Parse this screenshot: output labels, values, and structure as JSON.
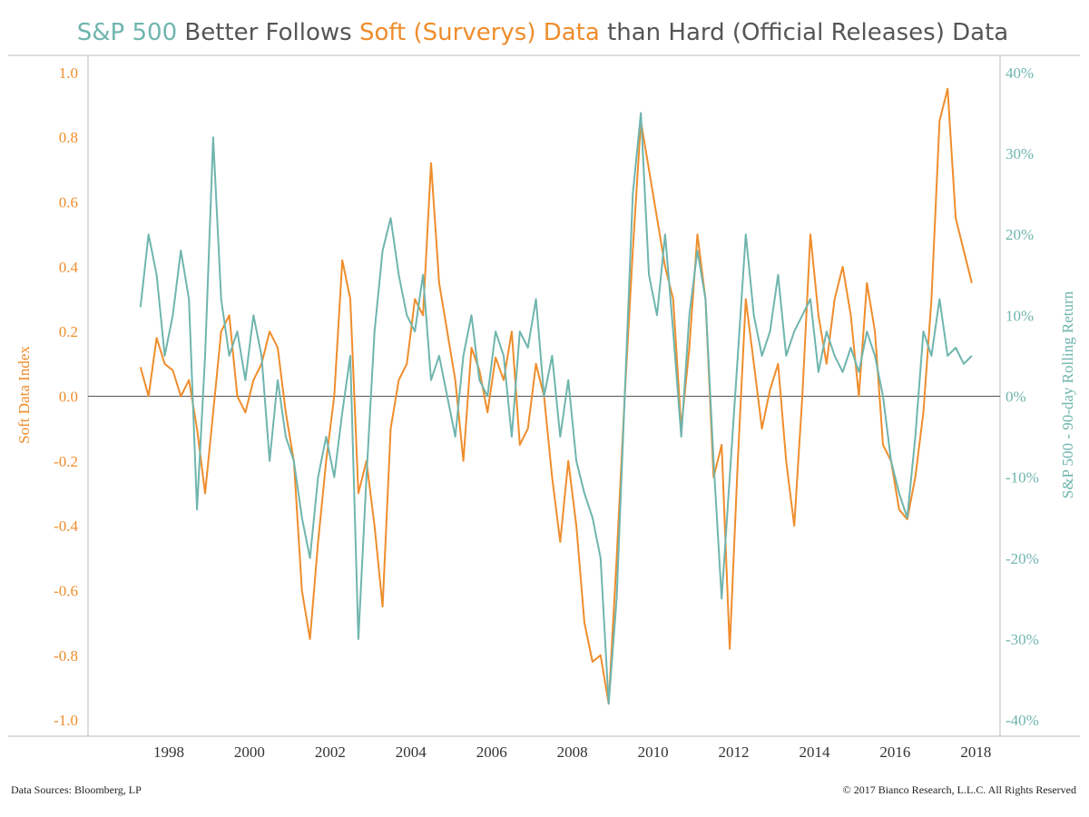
{
  "title": {
    "part1": "S&P 500",
    "part2": " Better Follows ",
    "part3": "Soft (Surverys) Data",
    "part4": " than Hard (Official Releases) Data"
  },
  "colors": {
    "soft": "#ef8d2c",
    "sp500": "#6fb5ae",
    "title_dark": "#555555",
    "axis": "#bbbbbb",
    "zero_line": "#555555"
  },
  "footer": {
    "sources": "Data Sources: Bloomberg, LP",
    "copyright": "© 2017 Bianco Research, L.L.C. All Rights Reserved"
  },
  "chart_data": {
    "type": "line",
    "xlim": [
      1996.0,
      2018.6
    ],
    "x_ticks": [
      "1998",
      "2000",
      "2002",
      "2004",
      "2006",
      "2008",
      "2010",
      "2012",
      "2014",
      "2016",
      "2018"
    ],
    "x_tick_values": [
      1998,
      2000,
      2002,
      2004,
      2006,
      2008,
      2010,
      2012,
      2014,
      2016,
      2018
    ],
    "y_left": {
      "label": "Soft Data Index",
      "ylim": [
        -1.05,
        1.05
      ],
      "ticks": [
        "1.0",
        "0.8",
        "0.6",
        "0.4",
        "0.2",
        "0.0",
        "-0.2",
        "-0.4",
        "-0.6",
        "-0.8",
        "-1.0"
      ],
      "tick_values": [
        1.0,
        0.8,
        0.6,
        0.4,
        0.2,
        0.0,
        -0.2,
        -0.4,
        -0.6,
        -0.8,
        -1.0
      ]
    },
    "y_right": {
      "label": "S&P 500 - 90-day Rolling Return",
      "ylim": [
        -42,
        42
      ],
      "ticks": [
        "40%",
        "30%",
        "20%",
        "10%",
        "0%",
        "-10%",
        "-20%",
        "-30%",
        "-40%"
      ],
      "tick_values": [
        40,
        30,
        20,
        10,
        0,
        -10,
        -20,
        -30,
        -40
      ]
    },
    "zero_line": 0,
    "series": [
      {
        "name": "Soft Data Index",
        "axis": "left",
        "color": "#ef8d2c",
        "x": [
          1997.3,
          1997.5,
          1997.7,
          1997.9,
          1998.1,
          1998.3,
          1998.5,
          1998.7,
          1998.9,
          1999.1,
          1999.3,
          1999.5,
          1999.7,
          1999.9,
          2000.1,
          2000.3,
          2000.5,
          2000.7,
          2000.9,
          2001.1,
          2001.3,
          2001.5,
          2001.7,
          2001.9,
          2002.1,
          2002.3,
          2002.5,
          2002.7,
          2002.9,
          2003.1,
          2003.3,
          2003.5,
          2003.7,
          2003.9,
          2004.1,
          2004.3,
          2004.5,
          2004.7,
          2004.9,
          2005.1,
          2005.3,
          2005.5,
          2005.7,
          2005.9,
          2006.1,
          2006.3,
          2006.5,
          2006.7,
          2006.9,
          2007.1,
          2007.3,
          2007.5,
          2007.7,
          2007.9,
          2008.1,
          2008.3,
          2008.5,
          2008.7,
          2008.9,
          2009.1,
          2009.3,
          2009.5,
          2009.7,
          2009.9,
          2010.1,
          2010.3,
          2010.5,
          2010.7,
          2010.9,
          2011.1,
          2011.3,
          2011.5,
          2011.7,
          2011.9,
          2012.1,
          2012.3,
          2012.5,
          2012.7,
          2012.9,
          2013.1,
          2013.3,
          2013.5,
          2013.7,
          2013.9,
          2014.1,
          2014.3,
          2014.5,
          2014.7,
          2014.9,
          2015.1,
          2015.3,
          2015.5,
          2015.7,
          2015.9,
          2016.1,
          2016.3,
          2016.5,
          2016.7,
          2016.9,
          2017.1,
          2017.3,
          2017.5,
          2017.7,
          2017.9
        ],
        "y": [
          0.09,
          0.0,
          0.18,
          0.1,
          0.08,
          0.0,
          0.05,
          -0.1,
          -0.3,
          -0.05,
          0.2,
          0.25,
          0.0,
          -0.05,
          0.05,
          0.1,
          0.2,
          0.15,
          -0.05,
          -0.2,
          -0.6,
          -0.75,
          -0.45,
          -0.2,
          0.0,
          0.42,
          0.3,
          -0.3,
          -0.2,
          -0.4,
          -0.65,
          -0.1,
          0.05,
          0.1,
          0.3,
          0.25,
          0.72,
          0.35,
          0.2,
          0.05,
          -0.2,
          0.15,
          0.08,
          -0.05,
          0.12,
          0.05,
          0.2,
          -0.15,
          -0.1,
          0.1,
          0.0,
          -0.25,
          -0.45,
          -0.2,
          -0.4,
          -0.7,
          -0.82,
          -0.8,
          -0.95,
          -0.5,
          0.0,
          0.45,
          0.85,
          0.7,
          0.55,
          0.4,
          0.3,
          -0.1,
          0.15,
          0.5,
          0.3,
          -0.25,
          -0.15,
          -0.78,
          -0.2,
          0.3,
          0.1,
          -0.1,
          0.02,
          0.1,
          -0.2,
          -0.4,
          0.0,
          0.5,
          0.25,
          0.1,
          0.3,
          0.4,
          0.25,
          0.0,
          0.35,
          0.2,
          -0.15,
          -0.2,
          -0.35,
          -0.38,
          -0.25,
          -0.05,
          0.3,
          0.85,
          0.95,
          0.55,
          0.45,
          0.35
        ]
      },
      {
        "name": "S&P 500 - 90-day Rolling Return",
        "axis": "right",
        "color": "#6fb5ae",
        "x": [
          1997.3,
          1997.5,
          1997.7,
          1997.9,
          1998.1,
          1998.3,
          1998.5,
          1998.7,
          1998.9,
          1999.1,
          1999.3,
          1999.5,
          1999.7,
          1999.9,
          2000.1,
          2000.3,
          2000.5,
          2000.7,
          2000.9,
          2001.1,
          2001.3,
          2001.5,
          2001.7,
          2001.9,
          2002.1,
          2002.3,
          2002.5,
          2002.7,
          2002.9,
          2003.1,
          2003.3,
          2003.5,
          2003.7,
          2003.9,
          2004.1,
          2004.3,
          2004.5,
          2004.7,
          2004.9,
          2005.1,
          2005.3,
          2005.5,
          2005.7,
          2005.9,
          2006.1,
          2006.3,
          2006.5,
          2006.7,
          2006.9,
          2007.1,
          2007.3,
          2007.5,
          2007.7,
          2007.9,
          2008.1,
          2008.3,
          2008.5,
          2008.7,
          2008.9,
          2009.1,
          2009.3,
          2009.5,
          2009.7,
          2009.9,
          2010.1,
          2010.3,
          2010.5,
          2010.7,
          2010.9,
          2011.1,
          2011.3,
          2011.5,
          2011.7,
          2011.9,
          2012.1,
          2012.3,
          2012.5,
          2012.7,
          2012.9,
          2013.1,
          2013.3,
          2013.5,
          2013.7,
          2013.9,
          2014.1,
          2014.3,
          2014.5,
          2014.7,
          2014.9,
          2015.1,
          2015.3,
          2015.5,
          2015.7,
          2015.9,
          2016.1,
          2016.3,
          2016.5,
          2016.7,
          2016.9,
          2017.1,
          2017.3,
          2017.5,
          2017.7,
          2017.9
        ],
        "y": [
          11,
          20,
          15,
          5,
          10,
          18,
          12,
          -14,
          5,
          32,
          12,
          5,
          8,
          2,
          10,
          5,
          -8,
          2,
          -5,
          -8,
          -15,
          -20,
          -10,
          -5,
          -10,
          -2,
          5,
          -30,
          -10,
          8,
          18,
          22,
          15,
          10,
          8,
          15,
          2,
          5,
          0,
          -5,
          5,
          10,
          2,
          0,
          8,
          5,
          -5,
          8,
          6,
          12,
          0,
          5,
          -5,
          2,
          -8,
          -12,
          -15,
          -20,
          -38,
          -25,
          0,
          25,
          35,
          15,
          10,
          20,
          8,
          -5,
          10,
          18,
          12,
          -8,
          -25,
          -10,
          5,
          20,
          10,
          5,
          8,
          15,
          5,
          8,
          10,
          12,
          3,
          8,
          5,
          3,
          6,
          3,
          8,
          5,
          0,
          -8,
          -12,
          -15,
          -5,
          8,
          5,
          12,
          5,
          6,
          4,
          5
        ]
      }
    ]
  }
}
